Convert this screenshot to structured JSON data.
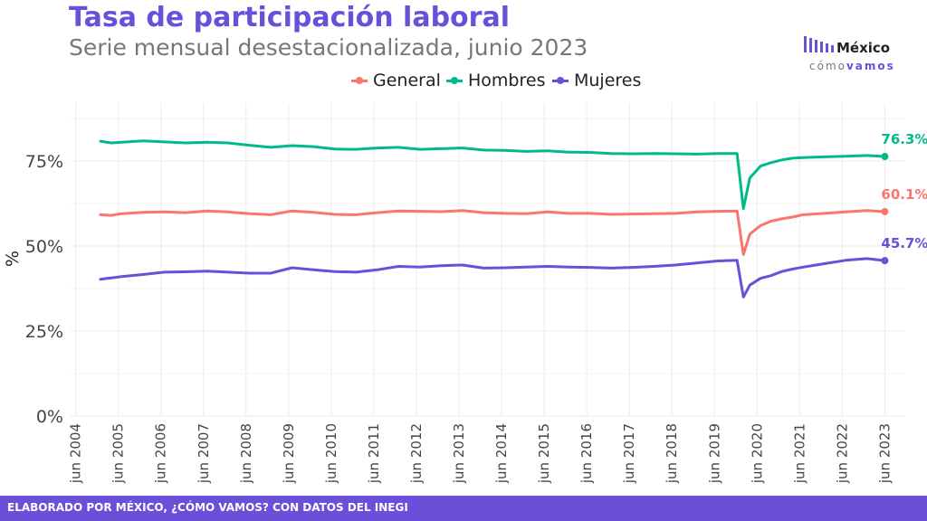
{
  "title": "Tasa de participación laboral",
  "subtitle": "Serie mensual desestacionalizada, junio 2023",
  "logo": {
    "name": "México",
    "tag_a": "cómo",
    "tag_b": "vamos"
  },
  "footer": "ELABORADO POR MÉXICO, ¿CÓMO VAMOS? CON DATOS DEL INEGI",
  "colors": {
    "title": "#6a4fd8",
    "general": "#f8766d",
    "hombres": "#00ba8c",
    "mujeres": "#6a4fd8",
    "footer": "#6a4fd8"
  },
  "chart_data": {
    "type": "line",
    "ylabel": "%",
    "ylim": [
      0,
      92
    ],
    "yticks": [
      0,
      25,
      50,
      75
    ],
    "ytick_labels": [
      "0%",
      "25%",
      "50%",
      "75%"
    ],
    "xlim": [
      2004.3,
      2023.9
    ],
    "xticks": [
      2004.42,
      2005.42,
      2006.42,
      2007.42,
      2008.42,
      2009.42,
      2010.42,
      2011.42,
      2012.42,
      2013.42,
      2014.42,
      2015.42,
      2016.42,
      2017.42,
      2018.42,
      2019.42,
      2020.42,
      2021.42,
      2022.42,
      2023.42
    ],
    "xtick_labels": [
      "jun 2004",
      "jun 2005",
      "jun 2006",
      "jun 2007",
      "jun 2008",
      "jun 2009",
      "jun 2010",
      "jun 2011",
      "jun 2012",
      "jun 2013",
      "jun 2014",
      "jun 2015",
      "jun 2016",
      "jun 2017",
      "jun 2018",
      "jun 2019",
      "jun 2020",
      "jun 2021",
      "jun 2022",
      "jun 2023"
    ],
    "grid": true,
    "legend_position": "top",
    "series": [
      {
        "name": "General",
        "key": "general",
        "end_label": "60.1%",
        "points": [
          [
            2005.0,
            59.2
          ],
          [
            2005.25,
            59.0
          ],
          [
            2005.5,
            59.5
          ],
          [
            2006.0,
            59.9
          ],
          [
            2006.5,
            60.0
          ],
          [
            2007.0,
            59.8
          ],
          [
            2007.5,
            60.3
          ],
          [
            2008.0,
            60.0
          ],
          [
            2008.5,
            59.5
          ],
          [
            2009.0,
            59.2
          ],
          [
            2009.5,
            60.3
          ],
          [
            2010.0,
            59.9
          ],
          [
            2010.5,
            59.3
          ],
          [
            2011.0,
            59.2
          ],
          [
            2011.5,
            59.8
          ],
          [
            2012.0,
            60.3
          ],
          [
            2012.5,
            60.2
          ],
          [
            2013.0,
            60.1
          ],
          [
            2013.5,
            60.4
          ],
          [
            2014.0,
            59.8
          ],
          [
            2014.5,
            59.6
          ],
          [
            2015.0,
            59.5
          ],
          [
            2015.5,
            60.0
          ],
          [
            2016.0,
            59.6
          ],
          [
            2016.5,
            59.6
          ],
          [
            2017.0,
            59.3
          ],
          [
            2017.5,
            59.4
          ],
          [
            2018.0,
            59.5
          ],
          [
            2018.5,
            59.6
          ],
          [
            2019.0,
            60.0
          ],
          [
            2019.5,
            60.2
          ],
          [
            2019.95,
            60.3
          ],
          [
            2020.1,
            47.5
          ],
          [
            2020.25,
            53.5
          ],
          [
            2020.5,
            56.0
          ],
          [
            2020.75,
            57.3
          ],
          [
            2021.0,
            58.0
          ],
          [
            2021.25,
            58.5
          ],
          [
            2021.5,
            59.2
          ],
          [
            2022.0,
            59.6
          ],
          [
            2022.5,
            60.0
          ],
          [
            2023.0,
            60.4
          ],
          [
            2023.42,
            60.1
          ]
        ]
      },
      {
        "name": "Hombres",
        "key": "hombres",
        "end_label": "76.3%",
        "points": [
          [
            2005.0,
            80.8
          ],
          [
            2005.25,
            80.3
          ],
          [
            2005.5,
            80.5
          ],
          [
            2006.0,
            80.9
          ],
          [
            2006.5,
            80.6
          ],
          [
            2007.0,
            80.3
          ],
          [
            2007.5,
            80.5
          ],
          [
            2008.0,
            80.3
          ],
          [
            2008.5,
            79.6
          ],
          [
            2009.0,
            79.0
          ],
          [
            2009.5,
            79.5
          ],
          [
            2010.0,
            79.2
          ],
          [
            2010.5,
            78.5
          ],
          [
            2011.0,
            78.4
          ],
          [
            2011.5,
            78.8
          ],
          [
            2012.0,
            79.0
          ],
          [
            2012.5,
            78.4
          ],
          [
            2013.0,
            78.6
          ],
          [
            2013.5,
            78.8
          ],
          [
            2014.0,
            78.2
          ],
          [
            2014.5,
            78.1
          ],
          [
            2015.0,
            77.8
          ],
          [
            2015.5,
            78.0
          ],
          [
            2016.0,
            77.6
          ],
          [
            2016.5,
            77.5
          ],
          [
            2017.0,
            77.2
          ],
          [
            2017.5,
            77.1
          ],
          [
            2018.0,
            77.2
          ],
          [
            2018.5,
            77.1
          ],
          [
            2019.0,
            77.0
          ],
          [
            2019.5,
            77.2
          ],
          [
            2019.95,
            77.2
          ],
          [
            2020.1,
            61.0
          ],
          [
            2020.25,
            70.0
          ],
          [
            2020.5,
            73.5
          ],
          [
            2020.75,
            74.5
          ],
          [
            2021.0,
            75.3
          ],
          [
            2021.25,
            75.8
          ],
          [
            2021.5,
            76.0
          ],
          [
            2022.0,
            76.2
          ],
          [
            2022.5,
            76.4
          ],
          [
            2023.0,
            76.6
          ],
          [
            2023.42,
            76.3
          ]
        ]
      },
      {
        "name": "Mujeres",
        "key": "mujeres",
        "end_label": "45.7%",
        "points": [
          [
            2005.0,
            40.2
          ],
          [
            2005.25,
            40.6
          ],
          [
            2005.5,
            41.0
          ],
          [
            2006.0,
            41.6
          ],
          [
            2006.5,
            42.3
          ],
          [
            2007.0,
            42.4
          ],
          [
            2007.5,
            42.6
          ],
          [
            2008.0,
            42.3
          ],
          [
            2008.5,
            42.0
          ],
          [
            2009.0,
            42.0
          ],
          [
            2009.5,
            43.6
          ],
          [
            2010.0,
            43.0
          ],
          [
            2010.5,
            42.5
          ],
          [
            2011.0,
            42.3
          ],
          [
            2011.5,
            43.0
          ],
          [
            2012.0,
            44.0
          ],
          [
            2012.5,
            43.8
          ],
          [
            2013.0,
            44.2
          ],
          [
            2013.5,
            44.4
          ],
          [
            2014.0,
            43.5
          ],
          [
            2014.5,
            43.6
          ],
          [
            2015.0,
            43.8
          ],
          [
            2015.5,
            44.0
          ],
          [
            2016.0,
            43.8
          ],
          [
            2016.5,
            43.7
          ],
          [
            2017.0,
            43.5
          ],
          [
            2017.5,
            43.7
          ],
          [
            2018.0,
            44.0
          ],
          [
            2018.5,
            44.4
          ],
          [
            2019.0,
            45.0
          ],
          [
            2019.5,
            45.6
          ],
          [
            2019.95,
            45.8
          ],
          [
            2020.1,
            35.0
          ],
          [
            2020.25,
            38.5
          ],
          [
            2020.5,
            40.5
          ],
          [
            2020.75,
            41.3
          ],
          [
            2021.0,
            42.5
          ],
          [
            2021.25,
            43.2
          ],
          [
            2021.5,
            43.8
          ],
          [
            2022.0,
            44.8
          ],
          [
            2022.5,
            45.8
          ],
          [
            2023.0,
            46.3
          ],
          [
            2023.42,
            45.7
          ]
        ]
      }
    ]
  }
}
